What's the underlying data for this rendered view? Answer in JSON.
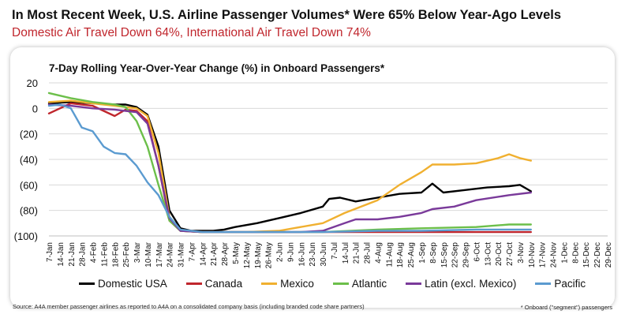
{
  "title": "In Most Recent Week, U.S. Airline Passenger Volumes* Were 65% Below Year-Ago Levels",
  "subtitle": "Domestic Air Travel Down 64%, International Air Travel Down 74%",
  "source": "Source: A4A member passenger airlines as reported to A4A on a consolidated company basis (including branded code share partners)",
  "footnote": "* Onboard (\"segment\") passengers",
  "colors": {
    "title": "#111111",
    "subtitle": "#c0262d"
  },
  "chart_data": {
    "type": "line",
    "title": "7-Day Rolling Year-Over-Year Change (%) in Onboard Passengers*",
    "xlabel": "",
    "ylabel": "",
    "ylim": [
      -100,
      20
    ],
    "yticks": [
      20,
      0,
      -20,
      -40,
      -60,
      -80,
      -100
    ],
    "ytick_labels": [
      "20",
      "0",
      "(20)",
      "(40)",
      "(60)",
      "(80)",
      "(100)"
    ],
    "x_range": [
      "2020-01-07",
      "2020-12-29"
    ],
    "x_tick_labels": [
      "7-Jan",
      "14-Jan",
      "21-Jan",
      "28-Jan",
      "4-Feb",
      "11-Feb",
      "18-Feb",
      "25-Feb",
      "3-Mar",
      "10-Mar",
      "17-Mar",
      "24-Mar",
      "31-Mar",
      "7-Apr",
      "14-Apr",
      "21-Apr",
      "28-Apr",
      "5-May",
      "12-May",
      "19-May",
      "26-May",
      "2-Jun",
      "9-Jun",
      "16-Jun",
      "23-Jun",
      "30-Jun",
      "7-Jul",
      "14-Jul",
      "21-Jul",
      "28-Jul",
      "4-Aug",
      "11-Aug",
      "18-Aug",
      "25-Aug",
      "1-Sep",
      "8-Sep",
      "15-Sep",
      "22-Sep",
      "29-Sep",
      "6-Oct",
      "13-Oct",
      "20-Oct",
      "27-Oct",
      "3-Nov",
      "10-Nov",
      "17-Nov",
      "24-Nov",
      "1-Dec",
      "8-Dec",
      "15-Dec",
      "22-Dec",
      "29-Dec"
    ],
    "grid": "horizontal",
    "legend_position": "bottom",
    "series": [
      {
        "name": "Domestic USA",
        "color": "#000000",
        "x": [
          "2020-01-07",
          "2020-01-21",
          "2020-02-04",
          "2020-02-18",
          "2020-02-25",
          "2020-03-03",
          "2020-03-10",
          "2020-03-17",
          "2020-03-24",
          "2020-03-31",
          "2020-04-07",
          "2020-04-14",
          "2020-04-21",
          "2020-04-28",
          "2020-05-05",
          "2020-05-19",
          "2020-06-02",
          "2020-06-16",
          "2020-06-30",
          "2020-07-04",
          "2020-07-11",
          "2020-07-21",
          "2020-08-04",
          "2020-08-18",
          "2020-09-01",
          "2020-09-08",
          "2020-09-15",
          "2020-09-29",
          "2020-10-13",
          "2020-10-27",
          "2020-11-03",
          "2020-11-10"
        ],
        "y": [
          4,
          5,
          4,
          3,
          3,
          1,
          -5,
          -30,
          -80,
          -94,
          -96,
          -96,
          -96,
          -95,
          -93,
          -90,
          -86,
          -82,
          -77,
          -71,
          -70,
          -73,
          -70,
          -67,
          -66,
          -59,
          -66,
          -64,
          -62,
          -61,
          -60,
          -65
        ]
      },
      {
        "name": "Canada",
        "color": "#c0262d",
        "x": [
          "2020-01-07",
          "2020-01-21",
          "2020-02-04",
          "2020-02-18",
          "2020-02-25",
          "2020-03-03",
          "2020-03-10",
          "2020-03-17",
          "2020-03-24",
          "2020-03-31",
          "2020-04-14",
          "2020-06-30",
          "2020-09-01",
          "2020-11-10"
        ],
        "y": [
          -4,
          4,
          2,
          -6,
          -1,
          -2,
          -10,
          -45,
          -88,
          -96,
          -97,
          -97,
          -97,
          -97
        ]
      },
      {
        "name": "Mexico",
        "color": "#f0b030",
        "x": [
          "2020-01-07",
          "2020-01-21",
          "2020-02-04",
          "2020-02-18",
          "2020-02-25",
          "2020-03-03",
          "2020-03-10",
          "2020-03-17",
          "2020-03-24",
          "2020-03-31",
          "2020-04-14",
          "2020-05-12",
          "2020-06-02",
          "2020-06-30",
          "2020-07-14",
          "2020-08-04",
          "2020-08-18",
          "2020-09-01",
          "2020-09-08",
          "2020-09-22",
          "2020-10-06",
          "2020-10-20",
          "2020-10-27",
          "2020-11-03",
          "2020-11-10"
        ],
        "y": [
          5,
          6,
          4,
          2,
          1,
          0,
          -6,
          -35,
          -85,
          -96,
          -97,
          -97,
          -96,
          -90,
          -82,
          -72,
          -60,
          -50,
          -44,
          -44,
          -43,
          -39,
          -36,
          -39,
          -41
        ]
      },
      {
        "name": "Atlantic",
        "color": "#6cbf4a",
        "x": [
          "2020-01-07",
          "2020-01-21",
          "2020-02-04",
          "2020-02-18",
          "2020-02-25",
          "2020-03-03",
          "2020-03-10",
          "2020-03-17",
          "2020-03-24",
          "2020-03-31",
          "2020-04-14",
          "2020-06-30",
          "2020-08-04",
          "2020-09-01",
          "2020-10-06",
          "2020-10-27",
          "2020-11-10"
        ],
        "y": [
          12,
          8,
          5,
          3,
          1,
          -10,
          -30,
          -60,
          -88,
          -96,
          -97,
          -97,
          -95,
          -94,
          -93,
          -91,
          -91
        ]
      },
      {
        "name": "Latin (excl. Mexico)",
        "color": "#7a3a9a",
        "x": [
          "2020-01-07",
          "2020-01-21",
          "2020-02-04",
          "2020-02-18",
          "2020-02-25",
          "2020-03-03",
          "2020-03-10",
          "2020-03-17",
          "2020-03-24",
          "2020-03-31",
          "2020-04-14",
          "2020-06-16",
          "2020-06-30",
          "2020-07-14",
          "2020-07-21",
          "2020-08-04",
          "2020-08-18",
          "2020-09-01",
          "2020-09-08",
          "2020-09-22",
          "2020-10-06",
          "2020-10-27",
          "2020-11-10"
        ],
        "y": [
          3,
          2,
          0,
          -1,
          -2,
          -3,
          -12,
          -45,
          -86,
          -96,
          -97,
          -97,
          -96,
          -90,
          -87,
          -87,
          -85,
          -82,
          -79,
          -77,
          -72,
          -68,
          -66
        ]
      },
      {
        "name": "Pacific",
        "color": "#5b9bd0",
        "x": [
          "2020-01-07",
          "2020-01-14",
          "2020-01-21",
          "2020-01-28",
          "2020-02-04",
          "2020-02-11",
          "2020-02-18",
          "2020-02-25",
          "2020-03-03",
          "2020-03-10",
          "2020-03-17",
          "2020-03-24",
          "2020-03-31",
          "2020-04-14",
          "2020-06-30",
          "2020-08-04",
          "2020-09-01",
          "2020-10-06",
          "2020-11-10"
        ],
        "y": [
          2,
          3,
          0,
          -15,
          -18,
          -30,
          -35,
          -36,
          -45,
          -58,
          -68,
          -85,
          -95,
          -97,
          -97,
          -96,
          -96,
          -95,
          -95
        ]
      }
    ]
  }
}
